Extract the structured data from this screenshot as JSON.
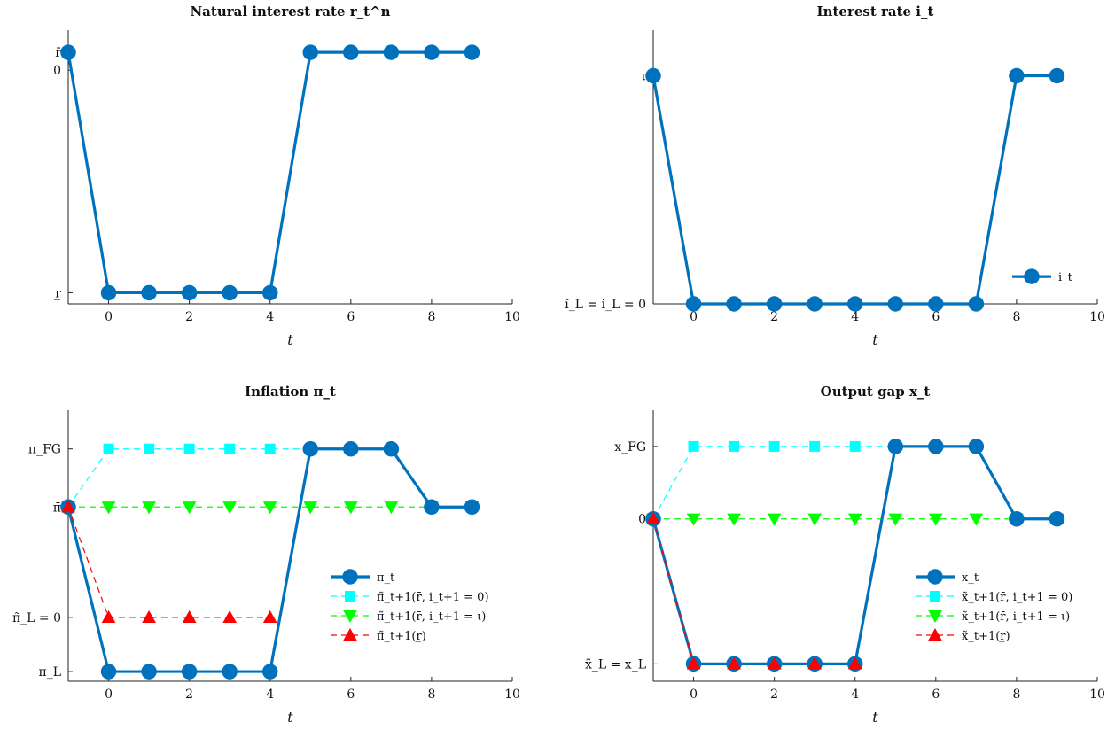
{
  "chart_data": [
    {
      "type": "line",
      "title": "Natural interest rate r_t^n",
      "xlabel": "t",
      "ylabel": "",
      "xlim": [
        -1,
        10
      ],
      "ylim": [
        -1.05,
        0.18
      ],
      "xticks": [
        0,
        2,
        4,
        6,
        8,
        10
      ],
      "yticks": [
        {
          "v": 0.08,
          "label": "r̄"
        },
        {
          "v": 0,
          "label": "0"
        },
        {
          "v": -1,
          "label": "r̲"
        }
      ],
      "colors": {
        "main": "#0072BD"
      },
      "series": [
        {
          "name": "",
          "style": "main",
          "x": [
            -1,
            0,
            1,
            2,
            3,
            4,
            5,
            6,
            7,
            8,
            9
          ],
          "y": [
            0.08,
            -1,
            -1,
            -1,
            -1,
            -1,
            0.08,
            0.08,
            0.08,
            0.08,
            0.08
          ]
        }
      ],
      "legend": []
    },
    {
      "type": "line",
      "title": "Interest rate i_t",
      "xlabel": "t",
      "ylabel": "",
      "xlim": [
        -1,
        10
      ],
      "ylim": [
        0,
        1.2
      ],
      "xticks": [
        0,
        2,
        4,
        6,
        8,
        10
      ],
      "yticks": [
        {
          "v": 1,
          "label": "ι"
        },
        {
          "v": 0,
          "label": "ĩ_L = i_L = 0"
        }
      ],
      "colors": {
        "main": "#0072BD"
      },
      "series": [
        {
          "name": "i_t",
          "style": "main",
          "x": [
            -1,
            0,
            1,
            2,
            3,
            4,
            5,
            6,
            7,
            8,
            9
          ],
          "y": [
            1,
            0,
            0,
            0,
            0,
            0,
            0,
            0,
            0,
            1,
            1
          ]
        }
      ],
      "legend": [
        {
          "label": "i_t",
          "style": "main"
        }
      ],
      "legend_position": "right"
    },
    {
      "type": "line",
      "title": "Inflation π_t",
      "xlabel": "t",
      "ylabel": "",
      "xlim": [
        -1,
        10
      ],
      "ylim": [
        -0.05,
        1.35
      ],
      "xticks": [
        0,
        2,
        4,
        6,
        8,
        10
      ],
      "yticks": [
        {
          "v": 1.15,
          "label": "π_FG"
        },
        {
          "v": 0.85,
          "label": "π̄"
        },
        {
          "v": 0.28,
          "label": "π̃_L = 0"
        },
        {
          "v": 0,
          "label": "π_L"
        }
      ],
      "colors": {
        "main": "#0072BD",
        "cyan": "#00FFFF",
        "green": "#00FF00",
        "red": "#FF0000"
      },
      "series": [
        {
          "name": "π̃_t+1(r̄, i_t+1 = 0)",
          "style": "cyan",
          "x": [
            -1,
            0,
            1,
            2,
            3,
            4,
            5,
            6,
            7
          ],
          "y": [
            0.85,
            1.15,
            1.15,
            1.15,
            1.15,
            1.15,
            1.15,
            1.15,
            1.15
          ]
        },
        {
          "name": "π̃_t+1(r̄, i_t+1 = ι)",
          "style": "green",
          "x": [
            -1,
            0,
            1,
            2,
            3,
            4,
            5,
            6,
            7,
            8,
            9
          ],
          "y": [
            0.85,
            0.85,
            0.85,
            0.85,
            0.85,
            0.85,
            0.85,
            0.85,
            0.85,
            0.85,
            0.85
          ]
        },
        {
          "name": "π_t",
          "style": "main",
          "x": [
            -1,
            0,
            1,
            2,
            3,
            4,
            5,
            6,
            7,
            8,
            9
          ],
          "y": [
            0.85,
            0,
            0,
            0,
            0,
            0,
            1.15,
            1.15,
            1.15,
            0.85,
            0.85
          ]
        },
        {
          "name": "π̃_t+1(r̲)",
          "style": "red",
          "x": [
            -1,
            0,
            1,
            2,
            3,
            4
          ],
          "y": [
            0.85,
            0.28,
            0.28,
            0.28,
            0.28,
            0.28
          ]
        }
      ],
      "legend": [
        {
          "label": "π_t",
          "style": "main"
        },
        {
          "label": "π̃_t+1(r̄, i_t+1 = 0)",
          "style": "cyan"
        },
        {
          "label": "π̃_t+1(r̄, i_t+1 = ι)",
          "style": "green"
        },
        {
          "label": "π̃_t+1(r̲)",
          "style": "red"
        }
      ],
      "legend_position": "bottom-right"
    },
    {
      "type": "line",
      "title": "Output gap x_t",
      "xlabel": "t",
      "ylabel": "",
      "xlim": [
        -1,
        10
      ],
      "ylim": [
        -1.12,
        0.75
      ],
      "xticks": [
        0,
        2,
        4,
        6,
        8,
        10
      ],
      "yticks": [
        {
          "v": 0.5,
          "label": "x_FG"
        },
        {
          "v": 0,
          "label": "0"
        },
        {
          "v": -1,
          "label": "x̃_L = x_L"
        }
      ],
      "colors": {
        "main": "#0072BD",
        "cyan": "#00FFFF",
        "green": "#00FF00",
        "red": "#FF0000"
      },
      "series": [
        {
          "name": "x̃_t+1(r̄, i_t+1 = 0)",
          "style": "cyan",
          "x": [
            -1,
            0,
            1,
            2,
            3,
            4,
            5,
            6,
            7
          ],
          "y": [
            0,
            0.5,
            0.5,
            0.5,
            0.5,
            0.5,
            0.5,
            0.5,
            0.5
          ]
        },
        {
          "name": "x̃_t+1(r̄, i_t+1 = ι)",
          "style": "green",
          "x": [
            -1,
            0,
            1,
            2,
            3,
            4,
            5,
            6,
            7,
            8,
            9
          ],
          "y": [
            0,
            0,
            0,
            0,
            0,
            0,
            0,
            0,
            0,
            0,
            0
          ]
        },
        {
          "name": "x_t",
          "style": "main",
          "x": [
            -1,
            0,
            1,
            2,
            3,
            4,
            5,
            6,
            7,
            8,
            9
          ],
          "y": [
            0,
            -1,
            -1,
            -1,
            -1,
            -1,
            0.5,
            0.5,
            0.5,
            0,
            0
          ]
        },
        {
          "name": "x̃_t+1(r̲)",
          "style": "red",
          "x": [
            -1,
            0,
            1,
            2,
            3,
            4
          ],
          "y": [
            0,
            -1,
            -1,
            -1,
            -1,
            -1
          ]
        }
      ],
      "legend": [
        {
          "label": "x_t",
          "style": "main"
        },
        {
          "label": "x̃_t+1(r̄, i_t+1 = 0)",
          "style": "cyan"
        },
        {
          "label": "x̃_t+1(r̄, i_t+1 = ι)",
          "style": "green"
        },
        {
          "label": "x̃_t+1(r̲)",
          "style": "red"
        }
      ],
      "legend_position": "bottom-right"
    }
  ]
}
